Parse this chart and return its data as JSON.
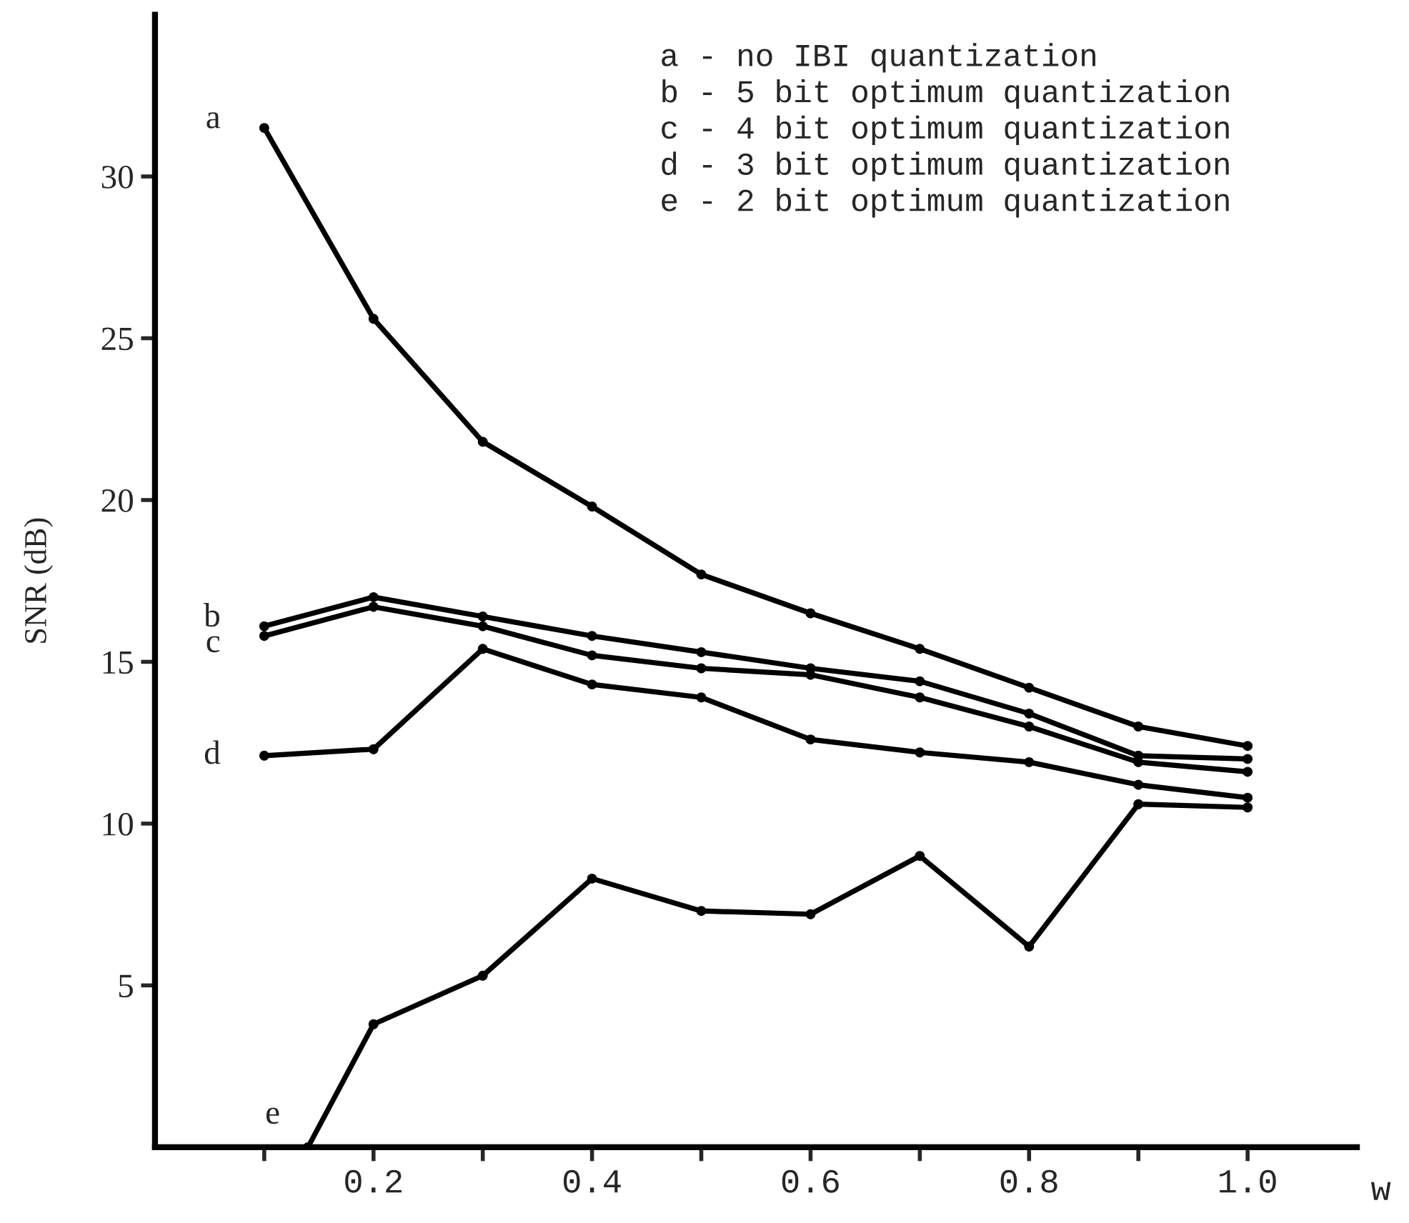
{
  "chart_data": {
    "type": "line",
    "ylabel": "SNR (dB)",
    "xlabel": "w",
    "xlim": [
      0,
      1.1
    ],
    "ylim": [
      0,
      35
    ],
    "xticks": [
      {
        "value": 0.1,
        "label": null
      },
      {
        "value": 0.2,
        "label": "0.2"
      },
      {
        "value": 0.3,
        "label": null
      },
      {
        "value": 0.4,
        "label": "0.4"
      },
      {
        "value": 0.5,
        "label": null
      },
      {
        "value": 0.6,
        "label": "0.6"
      },
      {
        "value": 0.7,
        "label": null
      },
      {
        "value": 0.8,
        "label": "0.8"
      },
      {
        "value": 0.9,
        "label": null
      },
      {
        "value": 1.0,
        "label": "1.0"
      }
    ],
    "yticks": [
      5,
      10,
      15,
      20,
      25,
      30
    ],
    "grid": false,
    "marker": "circle",
    "line_style": "solid",
    "series": [
      {
        "name": "a",
        "color": "#000000",
        "x": [
          0.1,
          0.2,
          0.3,
          0.4,
          0.5,
          0.6,
          0.7,
          0.8,
          0.9,
          1.0
        ],
        "values": [
          31.5,
          25.6,
          21.8,
          19.8,
          17.7,
          16.5,
          15.4,
          14.2,
          13.0,
          12.4
        ]
      },
      {
        "name": "b",
        "color": "#000000",
        "x": [
          0.1,
          0.2,
          0.3,
          0.4,
          0.5,
          0.6,
          0.7,
          0.8,
          0.9,
          1.0
        ],
        "values": [
          16.1,
          17.0,
          16.4,
          15.8,
          15.3,
          14.8,
          14.4,
          13.4,
          12.1,
          12.0
        ]
      },
      {
        "name": "c",
        "color": "#000000",
        "x": [
          0.1,
          0.2,
          0.3,
          0.4,
          0.5,
          0.6,
          0.7,
          0.8,
          0.9,
          1.0
        ],
        "values": [
          15.8,
          16.7,
          16.1,
          15.2,
          14.8,
          14.6,
          13.9,
          13.0,
          11.9,
          11.6
        ]
      },
      {
        "name": "d",
        "color": "#000000",
        "x": [
          0.1,
          0.2,
          0.3,
          0.4,
          0.5,
          0.6,
          0.7,
          0.8,
          0.9,
          1.0
        ],
        "values": [
          12.1,
          12.3,
          15.4,
          14.3,
          13.9,
          12.6,
          12.2,
          11.9,
          11.2,
          10.8
        ]
      },
      {
        "name": "e",
        "color": "#000000",
        "x": [
          0.14,
          0.2,
          0.3,
          0.4,
          0.5,
          0.6,
          0.7,
          0.8,
          0.9,
          1.0
        ],
        "values": [
          0,
          3.8,
          5.3,
          8.3,
          7.3,
          7.2,
          9.0,
          6.2,
          10.6,
          10.5
        ]
      }
    ],
    "annotations": [
      "a - no IBI quantization",
      "b - 5 bit optimum quantization",
      "c - 4 bit optimum quantization",
      "d - 3 bit optimum quantization",
      "e - 2 bit optimum quantization"
    ]
  }
}
